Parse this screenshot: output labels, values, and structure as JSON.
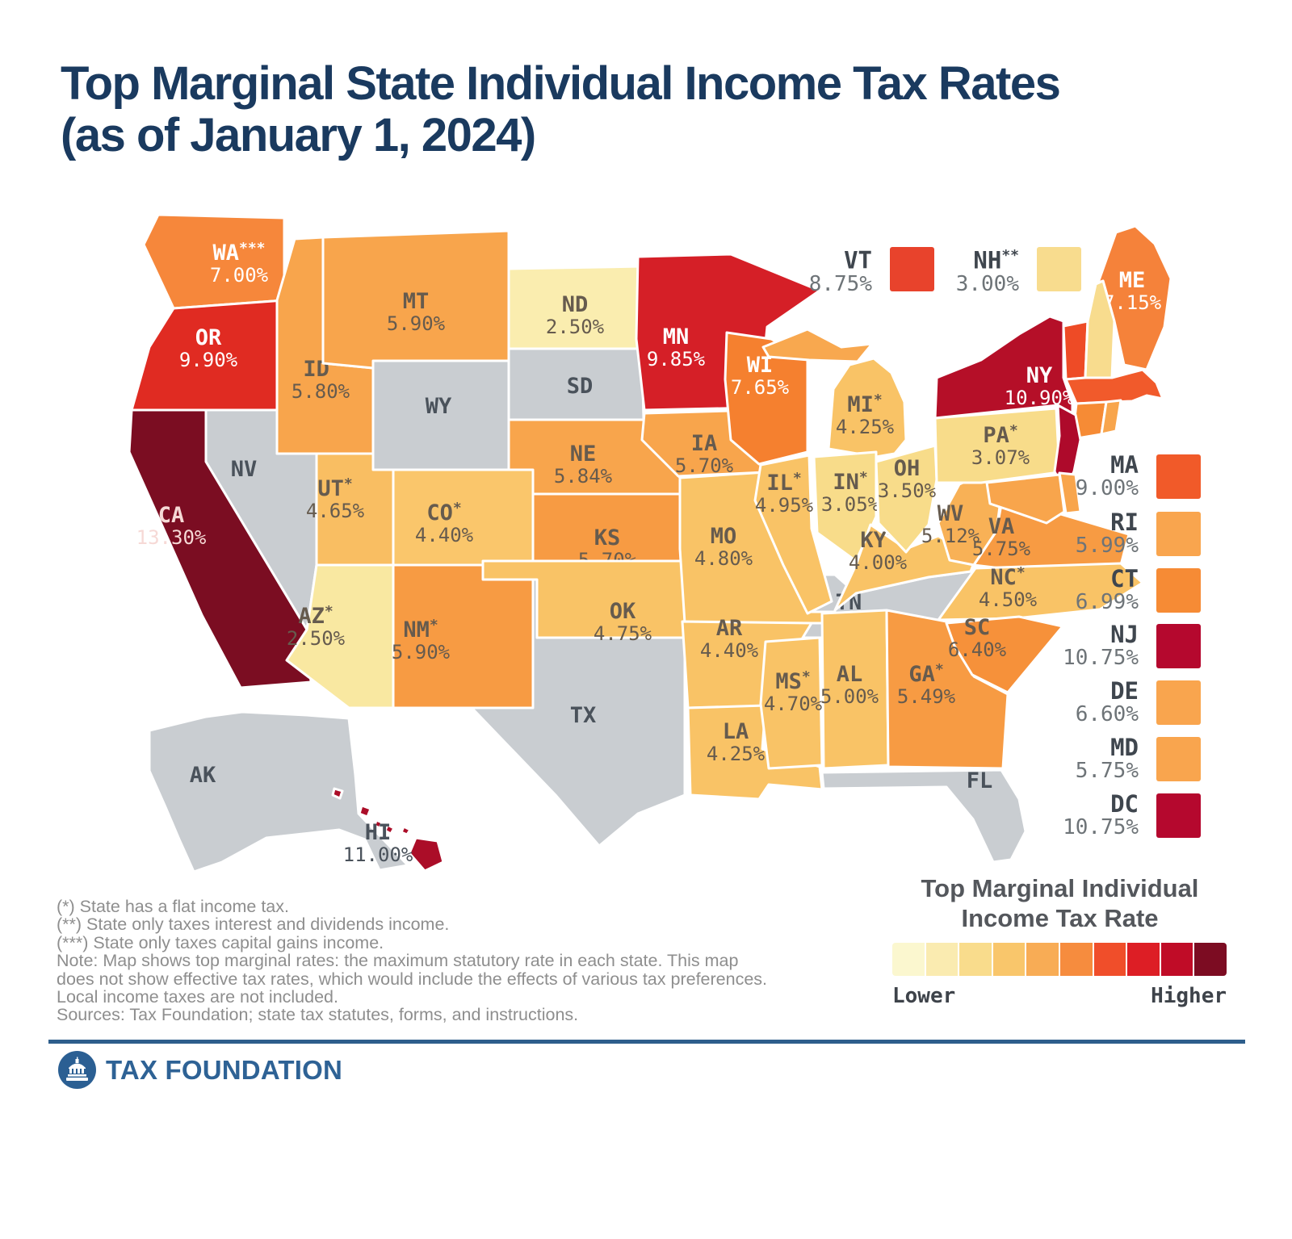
{
  "title": {
    "line1": "Top Marginal State Individual Income Tax Rates",
    "line2": "(as of January 1, 2024)"
  },
  "map": {
    "no_tax_fill": "#C9CDD1",
    "states": [
      {
        "id": "ak",
        "abbr": "AK",
        "marker": "",
        "rate": null,
        "fill": "#C9CDD1",
        "text": "#4A525B"
      },
      {
        "id": "nv",
        "abbr": "NV",
        "marker": "",
        "rate": null,
        "fill": "#C9CDD1",
        "text": "#4A525B"
      },
      {
        "id": "wy",
        "abbr": "WY",
        "marker": "",
        "rate": null,
        "fill": "#C9CDD1",
        "text": "#4A525B"
      },
      {
        "id": "sd",
        "abbr": "SD",
        "marker": "",
        "rate": null,
        "fill": "#C9CDD1",
        "text": "#4A525B"
      },
      {
        "id": "tx",
        "abbr": "TX",
        "marker": "",
        "rate": null,
        "fill": "#C9CDD1",
        "text": "#4A525B"
      },
      {
        "id": "tn",
        "abbr": "TN",
        "marker": "",
        "rate": null,
        "fill": "#C9CDD1",
        "text": "#4A525B"
      },
      {
        "id": "fl",
        "abbr": "FL",
        "marker": "",
        "rate": null,
        "fill": "#C9CDD1",
        "text": "#4A525B"
      },
      {
        "id": "wa",
        "abbr": "WA",
        "marker": "***",
        "rate": "7.00%",
        "fill": "#F6873B",
        "text": "#FFFFFF"
      },
      {
        "id": "or",
        "abbr": "OR",
        "marker": "",
        "rate": "9.90%",
        "fill": "#E02B22",
        "text": "#FFFFFF"
      },
      {
        "id": "ca",
        "abbr": "CA",
        "marker": "",
        "rate": "13.30%",
        "fill": "#7B0D22",
        "text": "#F6D9D6"
      },
      {
        "id": "id",
        "abbr": "ID",
        "marker": "*",
        "rate": "5.80%",
        "fill": "#F8A54C",
        "text": "#665B4E"
      },
      {
        "id": "mt",
        "abbr": "MT",
        "marker": "",
        "rate": "5.90%",
        "fill": "#F8A54C",
        "text": "#665B4E"
      },
      {
        "id": "ut",
        "abbr": "UT",
        "marker": "*",
        "rate": "4.65%",
        "fill": "#F9BE62",
        "text": "#665B4E"
      },
      {
        "id": "co",
        "abbr": "CO",
        "marker": "*",
        "rate": "4.40%",
        "fill": "#FAC66B",
        "text": "#665B4E"
      },
      {
        "id": "az",
        "abbr": "AZ",
        "marker": "*",
        "rate": "2.50%",
        "fill": "#F9E8A1",
        "text": "#665B4E"
      },
      {
        "id": "nm",
        "abbr": "NM",
        "marker": "*",
        "rate": "5.90%",
        "fill": "#F79B43",
        "text": "#665B4E"
      },
      {
        "id": "nd",
        "abbr": "ND",
        "marker": "",
        "rate": "2.50%",
        "fill": "#FAEDAF",
        "text": "#665B4E"
      },
      {
        "id": "ne",
        "abbr": "NE",
        "marker": "",
        "rate": "5.84%",
        "fill": "#F8A54C",
        "text": "#665B4E"
      },
      {
        "id": "ks",
        "abbr": "KS",
        "marker": "",
        "rate": "5.70%",
        "fill": "#F79B43",
        "text": "#665B4E"
      },
      {
        "id": "ok",
        "abbr": "OK",
        "marker": "",
        "rate": "4.75%",
        "fill": "#F9C366",
        "text": "#665B4E"
      },
      {
        "id": "mn",
        "abbr": "MN",
        "marker": "",
        "rate": "9.85%",
        "fill": "#D51F27",
        "text": "#FFFFFF"
      },
      {
        "id": "ia",
        "abbr": "IA",
        "marker": "",
        "rate": "5.70%",
        "fill": "#F8A54C",
        "text": "#665B4E"
      },
      {
        "id": "mo",
        "abbr": "MO",
        "marker": "",
        "rate": "4.80%",
        "fill": "#F9C366",
        "text": "#665B4E"
      },
      {
        "id": "ar",
        "abbr": "AR",
        "marker": "",
        "rate": "4.40%",
        "fill": "#F9C366",
        "text": "#665B4E"
      },
      {
        "id": "la",
        "abbr": "LA",
        "marker": "",
        "rate": "4.25%",
        "fill": "#F9C366",
        "text": "#665B4E"
      },
      {
        "id": "wi",
        "abbr": "WI",
        "marker": "",
        "rate": "7.65%",
        "fill": "#F5802F",
        "text": "#FFFFFF"
      },
      {
        "id": "il",
        "abbr": "IL",
        "marker": "*",
        "rate": "4.95%",
        "fill": "#F9C366",
        "text": "#665B4E"
      },
      {
        "id": "ms",
        "abbr": "MS",
        "marker": "*",
        "rate": "4.70%",
        "fill": "#F9C366",
        "text": "#665B4E"
      },
      {
        "id": "mi",
        "abbr": "MI",
        "marker": "*",
        "rate": "4.25%",
        "fill": "#F9C366",
        "text": "#665B4E"
      },
      {
        "id": "in",
        "abbr": "IN",
        "marker": "*",
        "rate": "3.05%",
        "fill": "#F8DC8A",
        "text": "#665B4E"
      },
      {
        "id": "ky",
        "abbr": "KY",
        "marker": "*",
        "rate": "4.00%",
        "fill": "#F9C366",
        "text": "#665B4E"
      },
      {
        "id": "al",
        "abbr": "AL",
        "marker": "",
        "rate": "5.00%",
        "fill": "#F9C366",
        "text": "#665B4E"
      },
      {
        "id": "ga",
        "abbr": "GA",
        "marker": "*",
        "rate": "5.49%",
        "fill": "#F79B43",
        "text": "#665B4E"
      },
      {
        "id": "oh",
        "abbr": "OH",
        "marker": "",
        "rate": "3.50%",
        "fill": "#F8DC8A",
        "text": "#665B4E"
      },
      {
        "id": "wv",
        "abbr": "WV",
        "marker": "",
        "rate": "5.12%",
        "fill": "#F8B156",
        "text": "#665B4E"
      },
      {
        "id": "va",
        "abbr": "VA",
        "marker": "",
        "rate": "5.75%",
        "fill": "#F79B43",
        "text": "#665B4E"
      },
      {
        "id": "nc",
        "abbr": "NC",
        "marker": "*",
        "rate": "4.50%",
        "fill": "#F9C366",
        "text": "#665B4E"
      },
      {
        "id": "sc",
        "abbr": "SC",
        "marker": "",
        "rate": "6.40%",
        "fill": "#F6913A",
        "text": "#665B4E"
      },
      {
        "id": "pa",
        "abbr": "PA",
        "marker": "*",
        "rate": "3.07%",
        "fill": "#F8DC8A",
        "text": "#665B4E"
      },
      {
        "id": "ny",
        "abbr": "NY",
        "marker": "",
        "rate": "10.90%",
        "fill": "#B50F28",
        "text": "#FFFFFF"
      },
      {
        "id": "me",
        "abbr": "ME",
        "marker": "",
        "rate": "7.15%",
        "fill": "#F5823A",
        "text": "#FFFFFF"
      },
      {
        "id": "hi",
        "abbr": "HI",
        "marker": "",
        "rate": "11.00%",
        "fill": "#AB0D28",
        "text": "#4A525B"
      },
      {
        "id": "vt",
        "abbr": "VT",
        "marker": "",
        "rate": null,
        "fill": "#EE4B26",
        "text": ""
      },
      {
        "id": "nh",
        "abbr": "NH",
        "marker": "",
        "rate": null,
        "fill": "#F8DC8E",
        "text": ""
      },
      {
        "id": "ma",
        "abbr": "MA",
        "marker": "",
        "rate": null,
        "fill": "#F15A2B",
        "text": ""
      },
      {
        "id": "ct",
        "abbr": "CT",
        "marker": "",
        "rate": null,
        "fill": "#F68B35",
        "text": ""
      },
      {
        "id": "ri",
        "abbr": "RI",
        "marker": "",
        "rate": null,
        "fill": "#F8A54C",
        "text": ""
      },
      {
        "id": "nj",
        "abbr": "NJ",
        "marker": "",
        "rate": null,
        "fill": "#AE0A2B",
        "text": ""
      },
      {
        "id": "de",
        "abbr": "DE",
        "marker": "",
        "rate": null,
        "fill": "#F8A54C",
        "text": ""
      },
      {
        "id": "md",
        "abbr": "MD",
        "marker": "",
        "rate": null,
        "fill": "#F8A54C",
        "text": ""
      }
    ]
  },
  "callouts": {
    "top": [
      {
        "label": "VT",
        "marker": "",
        "rate": "8.75%",
        "color": "#E8432C"
      },
      {
        "label": "NH",
        "marker": "**",
        "rate": "3.00%",
        "color": "#F8DC8E"
      }
    ],
    "right": [
      {
        "label": "MA",
        "rate": "9.00%",
        "color": "#F15A29"
      },
      {
        "label": "RI",
        "rate": "5.99%",
        "color": "#F9A54E"
      },
      {
        "label": "CT",
        "rate": "6.99%",
        "color": "#F68B35"
      },
      {
        "label": "NJ",
        "rate": "10.75%",
        "color": "#B5082E"
      },
      {
        "label": "DE",
        "rate": "6.60%",
        "color": "#F9A54E"
      },
      {
        "label": "MD",
        "rate": "5.75%",
        "color": "#F9A54E"
      },
      {
        "label": "DC",
        "rate": "10.75%",
        "color": "#B5082E"
      }
    ]
  },
  "footnotes": [
    "(*) State has a flat income tax.",
    "(**) State only taxes interest and dividends income.",
    "(***) State only taxes capital gains income.",
    "Note: Map shows top marginal rates: the maximum statutory rate in each state. This map",
    "does not show effective tax rates, which would include the effects of various tax preferences.",
    "Local income taxes are not included.",
    "Sources: Tax Foundation; state tax statutes, forms, and instructions."
  ],
  "legend": {
    "title_line1": "Top Marginal Individual",
    "title_line2": "Income Tax Rate",
    "low_label": "Lower",
    "high_label": "Higher",
    "swatches": [
      "#FBF7CF",
      "#FAEBB0",
      "#F9DC8C",
      "#F9C66B",
      "#F8AC55",
      "#F68C3E",
      "#F04E2A",
      "#DD1E25",
      "#C00C27",
      "#7C0C22"
    ]
  },
  "footer": {
    "brand": "TAX FOUNDATION"
  }
}
